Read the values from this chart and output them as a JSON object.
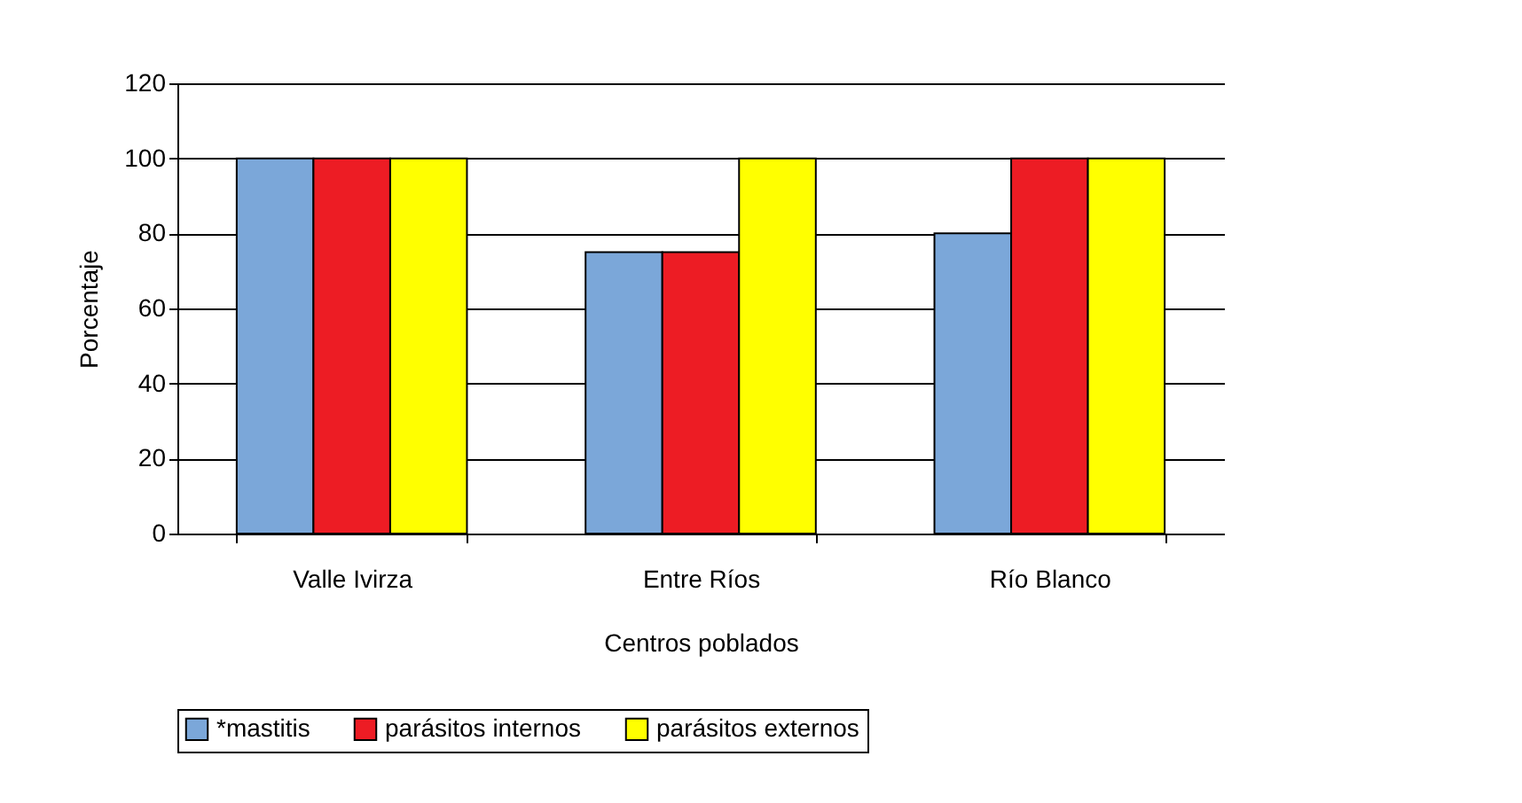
{
  "chart_data": {
    "type": "bar",
    "xlabel": "Centros poblados",
    "ylabel": "Porcentaje",
    "categories": [
      "Valle Ivirza",
      "Entre Ríos",
      "Río Blanco"
    ],
    "series": [
      {
        "name": "*mastitis",
        "color": "#7ba7d9",
        "values": [
          100,
          75,
          80
        ]
      },
      {
        "name": "parásitos internos",
        "color": "#ed1c24",
        "values": [
          100,
          75,
          100
        ]
      },
      {
        "name": "parásitos externos",
        "color": "#ffff00",
        "values": [
          100,
          100,
          100
        ]
      }
    ],
    "ylim": [
      0,
      120
    ],
    "yticks": [
      0,
      20,
      40,
      60,
      80,
      100,
      120
    ],
    "grid": "y",
    "legend": "bottom"
  }
}
